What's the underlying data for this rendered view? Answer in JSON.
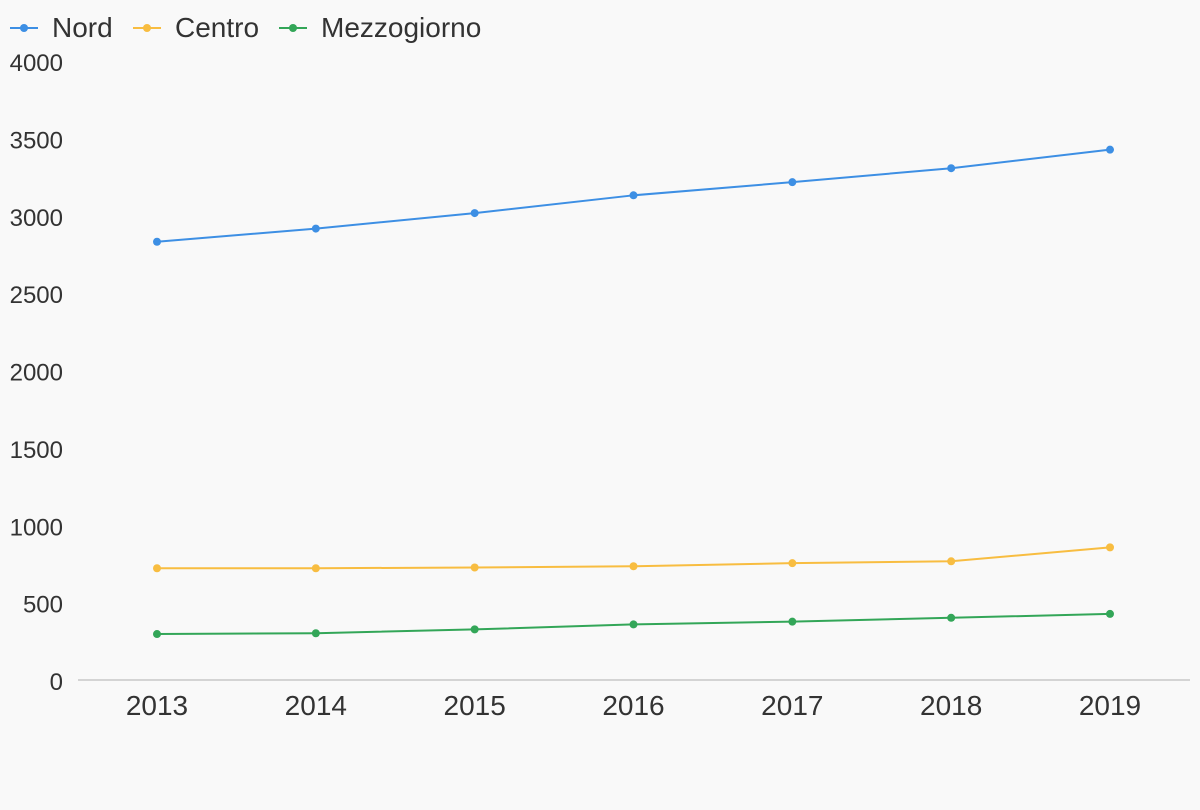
{
  "chart_data": {
    "type": "line",
    "categories": [
      "2013",
      "2014",
      "2015",
      "2016",
      "2017",
      "2018",
      "2019"
    ],
    "series": [
      {
        "name": "Nord",
        "color": "#3d8fe4",
        "values": [
          2845,
          2930,
          3030,
          3145,
          3230,
          3320,
          3440
        ]
      },
      {
        "name": "Centro",
        "color": "#f8bd41",
        "values": [
          735,
          735,
          740,
          748,
          768,
          780,
          870
        ]
      },
      {
        "name": "Mezzogiorno",
        "color": "#33a658",
        "values": [
          310,
          315,
          340,
          372,
          390,
          415,
          440
        ]
      }
    ],
    "yticks": [
      "0",
      "500",
      "1000",
      "1500",
      "2000",
      "2500",
      "3000",
      "3500",
      "4000"
    ],
    "ylim": [
      0,
      4000
    ],
    "grid": false,
    "legend_position": "top-left",
    "title": "",
    "xlabel": "",
    "ylabel": ""
  }
}
